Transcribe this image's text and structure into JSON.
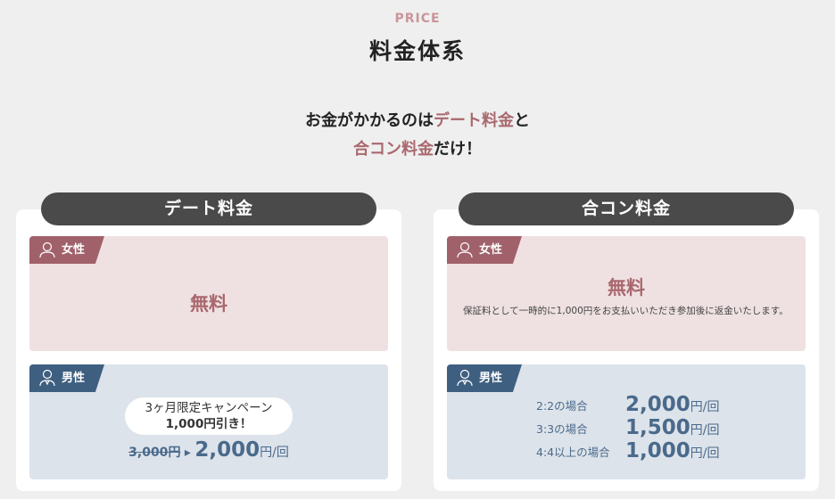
{
  "header": {
    "eyebrow": "PRICE",
    "title": "料金体系"
  },
  "lead": {
    "part1": "お金がかかるのは",
    "hl1": "デート料金",
    "part2": "と",
    "hl2": "合コン料金",
    "part3": "だけ！"
  },
  "date": {
    "title": "デート料金",
    "female": {
      "label": "女性",
      "price": "無料"
    },
    "male": {
      "label": "男性",
      "campaign_line1": "3ヶ月限定キャンペーン",
      "campaign_amount": "1,000",
      "campaign_rest": "円引き！",
      "old_price": "3,000",
      "old_unit": "円",
      "arrow": "▸",
      "new_price": "2,000",
      "unit": "円/回"
    }
  },
  "goukon": {
    "title": "合コン料金",
    "female": {
      "label": "女性",
      "price": "無料",
      "note": "保証料として一時的に1,000円をお支払いいただき参加後に返金いたします。"
    },
    "male": {
      "label": "男性",
      "rows": [
        {
          "label": "2:2の場合",
          "price": "2,000",
          "unit": "円/回"
        },
        {
          "label": "3:3の場合",
          "price": "1,500",
          "unit": "円/回"
        },
        {
          "label": "4:4以上の場合",
          "price": "1,000",
          "unit": "円/回"
        }
      ]
    }
  },
  "colors": {
    "female": "#a0616a",
    "male": "#3f5f80",
    "accent": "#a9686e"
  }
}
